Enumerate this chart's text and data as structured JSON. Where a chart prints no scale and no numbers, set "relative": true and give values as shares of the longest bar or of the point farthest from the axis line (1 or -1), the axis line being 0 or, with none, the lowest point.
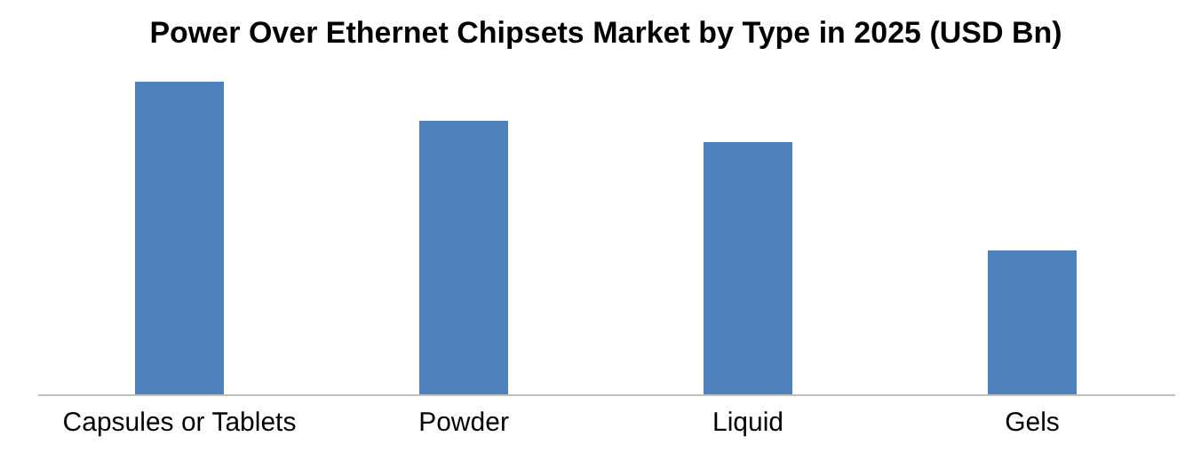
{
  "chart_data": {
    "type": "bar",
    "title": "Power Over Ethernet Chipsets Market by Type in 2025 (USD Bn)",
    "categories": [
      "Capsules or Tablets",
      "Powder",
      "Liquid",
      "Gels"
    ],
    "values": [
      1,
      0.875,
      0.807,
      0.46
    ],
    "color": "#4f81bd",
    "relative": true,
    "grid": false
  }
}
